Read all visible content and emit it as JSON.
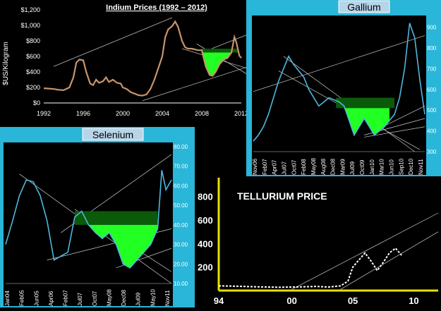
{
  "chart_data": [
    {
      "id": "indium",
      "type": "line",
      "title": "Indium Prices (1992 – 2012)",
      "ylabel": "$US/Kilogram",
      "xlabel": "",
      "x_ticks": [
        "1992",
        "1996",
        "2000",
        "2004",
        "2008",
        "2012"
      ],
      "y_ticks": [
        "$0",
        "$200",
        "$400",
        "$600",
        "$800",
        "$1,000",
        "$1,200"
      ],
      "xlim": [
        1992,
        2012
      ],
      "ylim": [
        0,
        1200
      ],
      "line_color": "#c8946a",
      "fill_color": "#22ff22",
      "series": [
        {
          "x": [
            1992,
            1992.5,
            1993,
            1993.5,
            1994,
            1994.6,
            1995,
            1995.3,
            1995.6,
            1996,
            1996.3,
            1996.7,
            1997,
            1997.3,
            1997.6,
            1998,
            1998.3,
            1998.6,
            1999,
            1999.4,
            1999.8,
            2000,
            2000.4,
            2000.8,
            2001.2,
            2001.6,
            2002,
            2002.4,
            2002.8,
            2003.2,
            2003.6,
            2004,
            2004.3,
            2004.6,
            2005,
            2005.3,
            2005.6,
            2006,
            2006.3,
            2006.6,
            2007,
            2007.3,
            2007.6,
            2008,
            2008.4,
            2008.8,
            2009.1,
            2009.4,
            2009.8,
            2010.2,
            2010.6,
            2011,
            2011.3,
            2011.5,
            2011.8,
            2012
          ],
          "y": [
            190,
            185,
            180,
            170,
            165,
            200,
            330,
            520,
            560,
            550,
            400,
            250,
            230,
            300,
            260,
            280,
            330,
            270,
            300,
            260,
            250,
            200,
            180,
            140,
            120,
            100,
            95,
            110,
            180,
            300,
            450,
            600,
            850,
            950,
            990,
            1050,
            980,
            800,
            720,
            700,
            700,
            690,
            680,
            680,
            470,
            360,
            350,
            400,
            500,
            560,
            580,
            650,
            850,
            780,
            610,
            580
          ]
        }
      ]
    },
    {
      "id": "gallium",
      "type": "line",
      "title": "Gallium",
      "xlabel": "",
      "ylabel": "",
      "x_ticks": [
        "Nov06",
        "Feb07",
        "Apr07",
        "Jul07",
        "Oct07",
        "Feb08",
        "May08",
        "Aug08",
        "Dec08",
        "Mar09",
        "Jul09",
        "Oct09",
        "Jan10",
        "Mar10",
        "Jun10",
        "Sep10",
        "Dec10",
        "Nov11"
      ],
      "y_ticks": [
        "300",
        "400",
        "500",
        "600",
        "700",
        "800",
        "900"
      ],
      "ylim": [
        300,
        950
      ],
      "line_color": "#4fb8e0",
      "fill_color": "#22ff22",
      "series": [
        {
          "x": [
            0,
            0.5,
            1,
            1.5,
            2,
            2.5,
            3,
            3.5,
            4,
            4.5,
            5,
            5.5,
            6,
            6.5,
            7,
            7.5,
            8,
            8.5,
            9,
            9.5,
            10,
            10.5,
            11,
            11.5,
            12,
            12.5,
            13,
            13.5,
            14,
            14.5,
            15,
            15.5,
            16,
            16.5,
            17
          ],
          "y": [
            350,
            380,
            420,
            480,
            560,
            640,
            700,
            760,
            720,
            690,
            660,
            600,
            560,
            520,
            540,
            560,
            550,
            540,
            520,
            450,
            380,
            420,
            460,
            420,
            380,
            400,
            420,
            450,
            480,
            560,
            700,
            920,
            850,
            650,
            480
          ]
        }
      ]
    },
    {
      "id": "selenium",
      "type": "line",
      "title": "Selenium",
      "xlabel": "",
      "ylabel": "",
      "x_ticks": [
        "Jan04",
        "Feb05",
        "Jun05",
        "Apr06",
        "Feb07",
        "Jul07",
        "Oct07",
        "May08",
        "Dec08",
        "Jul09",
        "May10",
        "Nov11"
      ],
      "y_ticks": [
        "10.00",
        "20.00",
        "30.00",
        "40.00",
        "50.00",
        "60.00",
        "70.00",
        "80.00"
      ],
      "ylim": [
        10,
        80
      ],
      "line_color": "#4fb8e0",
      "fill_color": "#22ff22",
      "series": [
        {
          "x": [
            0,
            0.5,
            1,
            1.5,
            2,
            2.5,
            3,
            3.5,
            4,
            4.5,
            5,
            5.5,
            6,
            6.5,
            7,
            7.5,
            8,
            8.5,
            9,
            9.5,
            10,
            10.5,
            11,
            11.3,
            11.6,
            12
          ],
          "y": [
            30,
            42,
            55,
            63,
            62,
            55,
            42,
            22,
            24,
            26,
            44,
            47,
            40,
            36,
            33,
            36,
            30,
            20,
            18,
            22,
            26,
            30,
            38,
            68,
            58,
            63
          ]
        }
      ]
    },
    {
      "id": "tellurium",
      "type": "line",
      "title": "TELLURIUM PRICE",
      "xlabel": "",
      "ylabel": "",
      "x_ticks": [
        "94",
        "00",
        "05",
        "10"
      ],
      "y_ticks": [
        "200",
        "400",
        "600",
        "800"
      ],
      "xlim": [
        1994,
        2012
      ],
      "ylim": [
        0,
        900
      ],
      "line_color": "#ffffff",
      "series": [
        {
          "x": [
            1994,
            1995,
            1996,
            1997,
            1998,
            1999,
            2000,
            2001,
            2002,
            2003,
            2004,
            2004.6,
            2005,
            2005.5,
            2006,
            2006.5,
            2007,
            2007.5,
            2008,
            2008.5,
            2009
          ],
          "y": [
            40,
            38,
            35,
            32,
            30,
            28,
            30,
            32,
            35,
            30,
            40,
            80,
            200,
            260,
            320,
            250,
            170,
            240,
            320,
            360,
            300
          ]
        }
      ]
    }
  ]
}
